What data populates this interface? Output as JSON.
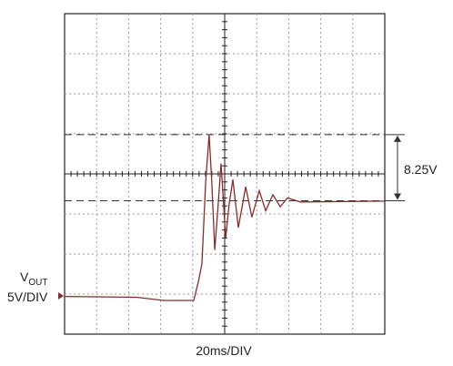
{
  "chart_data": {
    "type": "line",
    "x": [
      0,
      44.9,
      61.9,
      80.7,
      83.5,
      85.8,
      88.1,
      90.3,
      92,
      93.8,
      96,
      97.7,
      100.6,
      102.8,
      105.1,
      108.5,
      113.1,
      117,
      121.6,
      125.6,
      130.1,
      134.7,
      139.2,
      147.2,
      200
    ],
    "values": [
      -0.1,
      -0.2,
      -0.6,
      -0.6,
      1.7,
      4,
      14.2,
      20.1,
      14,
      5.7,
      11.6,
      16.5,
      7.2,
      11.4,
      14.5,
      8.5,
      13.6,
      9.8,
      13.1,
      10.6,
      12.6,
      11.1,
      12.2,
      11.7,
      11.8
    ],
    "color": "#8b2a2a",
    "xlim": [
      0,
      200
    ],
    "ylim": [
      -4.8,
      35.2
    ],
    "levels": [
      20.1,
      11.85
    ],
    "channel_label": "V",
    "channel_sub": "OUT",
    "y_scale": "5V/DIV",
    "x_scale": "20ms/DIV",
    "annotation": "8.25V"
  }
}
